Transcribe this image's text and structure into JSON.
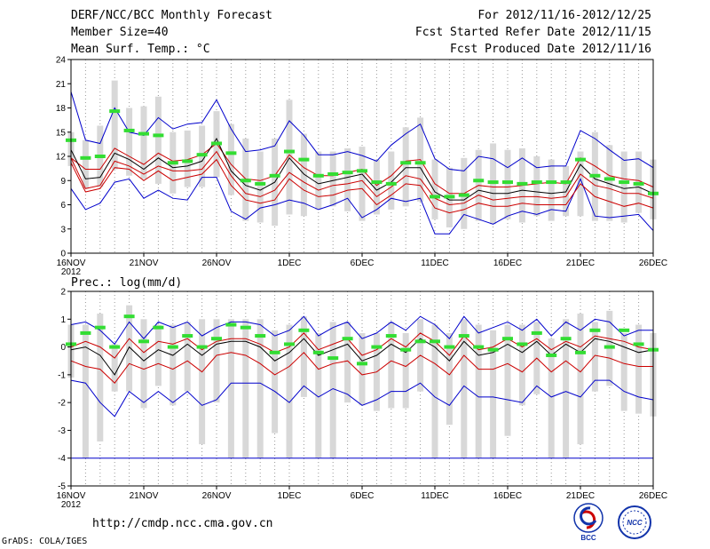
{
  "header": {
    "title": "DERF/NCC/BCC Monthly Forecast",
    "member_size": "Member Size=40",
    "variable": "Mean Surf. Temp.: °C",
    "period": "For 2012/11/16-2012/12/25",
    "started": "Fcst Started Refer Date 2012/11/15",
    "produced": "Fcst Produced Date 2012/11/16"
  },
  "footer": {
    "url": "http://cmdp.ncc.cma.gov.cn",
    "credit": "GrADS: COLA/IGES",
    "logo_left_text": "BCC",
    "logo_right_text": "NCC"
  },
  "colors": {
    "envelope": "#0000cc",
    "spread": "#cc0000",
    "mean": "#000000",
    "observed": "#33dd33",
    "box": "#d8d8d8",
    "axis": "#000000",
    "grid": "#999999"
  },
  "chart_data": [
    {
      "type": "line",
      "title": "Mean Surf. Temp.: °C",
      "ylim": [
        0,
        24
      ],
      "yticks": [
        0,
        3,
        6,
        9,
        12,
        15,
        18,
        21,
        24
      ],
      "xlim": [
        0,
        40
      ],
      "xticks": [
        0,
        5,
        10,
        15,
        20,
        25,
        30,
        35,
        40
      ],
      "xtick_labels": [
        "16NOV",
        "21NOV",
        "26NOV",
        "1DEC",
        "6DEC",
        "11DEC",
        "16DEC",
        "21DEC",
        "26DEC"
      ],
      "xtick_sub": "2012",
      "grid": true,
      "series": [
        {
          "name": "max",
          "values": [
            20.0,
            14.0,
            13.6,
            18.0,
            15.0,
            14.6,
            16.8,
            15.4,
            16.0,
            16.2,
            19.0,
            15.4,
            12.6,
            12.8,
            13.3,
            16.4,
            14.6,
            12.2,
            12.2,
            12.6,
            12.1,
            11.4,
            13.4,
            14.8,
            16.0,
            11.7,
            10.4,
            10.2,
            12.0,
            11.7,
            10.6,
            11.8,
            10.6,
            10.8,
            10.8,
            15.2,
            14.2,
            12.8,
            11.5,
            11.7,
            10.6
          ]
        },
        {
          "name": "upper",
          "values": [
            11.8,
            10.4,
            10.4,
            13.0,
            12.0,
            11.0,
            12.4,
            11.4,
            11.6,
            12.2,
            13.6,
            11.0,
            9.2,
            9.0,
            9.6,
            12.2,
            10.6,
            9.6,
            9.6,
            10.0,
            10.4,
            8.4,
            9.6,
            11.4,
            11.6,
            8.6,
            7.4,
            7.4,
            8.4,
            8.2,
            8.2,
            8.4,
            8.6,
            8.8,
            8.6,
            11.8,
            10.8,
            9.6,
            9.2,
            9.0,
            8.2
          ]
        },
        {
          "name": "mean",
          "values": [
            12.8,
            9.2,
            9.4,
            12.4,
            11.6,
            10.4,
            11.8,
            10.6,
            10.8,
            11.4,
            14.2,
            10.2,
            8.4,
            7.8,
            8.8,
            11.8,
            9.8,
            8.6,
            9.0,
            9.4,
            9.8,
            7.8,
            8.8,
            10.6,
            10.6,
            7.6,
            6.6,
            6.6,
            7.8,
            7.4,
            7.4,
            7.8,
            7.6,
            7.4,
            7.6,
            11.0,
            9.2,
            8.6,
            8.0,
            8.2,
            7.4
          ]
        },
        {
          "name": "lower",
          "values": [
            11.8,
            8.0,
            8.4,
            11.4,
            10.8,
            9.8,
            10.8,
            10.2,
            10.2,
            10.4,
            12.6,
            9.6,
            7.4,
            7.0,
            7.8,
            10.0,
            8.8,
            7.8,
            8.4,
            8.6,
            9.0,
            7.0,
            8.2,
            9.6,
            9.2,
            6.8,
            6.0,
            6.2,
            7.2,
            6.6,
            6.8,
            7.0,
            7.0,
            6.8,
            7.0,
            9.8,
            8.4,
            8.0,
            7.4,
            7.4,
            6.8
          ]
        },
        {
          "name": "low2",
          "values": [
            11.2,
            7.6,
            8.0,
            10.6,
            10.4,
            9.0,
            10.2,
            9.0,
            9.4,
            9.8,
            11.6,
            8.4,
            6.6,
            6.2,
            6.6,
            9.2,
            7.8,
            7.0,
            7.2,
            7.8,
            8.0,
            6.0,
            7.2,
            8.6,
            8.4,
            5.6,
            5.0,
            5.4,
            6.2,
            5.8,
            5.8,
            6.2,
            6.0,
            6.0,
            6.0,
            8.6,
            7.0,
            6.4,
            5.8,
            6.2,
            5.6
          ]
        },
        {
          "name": "min",
          "values": [
            8.0,
            5.4,
            6.2,
            8.8,
            9.2,
            6.8,
            7.8,
            6.8,
            6.6,
            9.4,
            9.4,
            5.2,
            4.2,
            5.6,
            6.0,
            6.6,
            6.2,
            5.4,
            6.0,
            6.8,
            4.4,
            5.4,
            6.8,
            6.4,
            6.8,
            2.4,
            2.4,
            4.8,
            4.2,
            3.6,
            4.6,
            5.2,
            4.8,
            5.4,
            5.2,
            9.2,
            4.6,
            4.4,
            4.6,
            4.8,
            2.8
          ]
        },
        {
          "name": "observed",
          "values": [
            14.0,
            11.8,
            12.0,
            17.6,
            15.2,
            14.8,
            14.6,
            11.2,
            11.4,
            12.2,
            13.6,
            12.4,
            9.0,
            8.6,
            9.6,
            12.6,
            11.6,
            9.6,
            9.8,
            10.0,
            10.2,
            8.8,
            8.6,
            11.2,
            11.2,
            7.0,
            7.0,
            7.2,
            9.0,
            8.8,
            8.8,
            8.6,
            8.8,
            8.8,
            8.8,
            11.6,
            9.6,
            9.2,
            8.8,
            8.6,
            7.4
          ]
        },
        {
          "name": "box_top",
          "values": [
            15.0,
            14.0,
            15.8,
            21.4,
            18.0,
            18.2,
            19.4,
            15.0,
            15.2,
            15.8,
            17.6,
            16.0,
            14.2,
            12.6,
            14.2,
            19.0,
            14.8,
            12.6,
            12.6,
            13.0,
            13.2,
            11.6,
            12.6,
            15.6,
            16.8,
            11.6,
            10.6,
            11.8,
            12.8,
            13.6,
            12.8,
            13.0,
            12.0,
            11.6,
            10.8,
            12.6,
            15.0,
            13.4,
            12.6,
            12.6,
            11.6
          ]
        },
        {
          "name": "box_bottom",
          "values": [
            10.8,
            8.0,
            8.2,
            10.4,
            9.6,
            9.2,
            8.6,
            7.4,
            8.2,
            8.2,
            9.4,
            7.2,
            4.0,
            3.8,
            3.4,
            4.8,
            4.6,
            5.4,
            5.8,
            5.2,
            4.0,
            4.8,
            5.4,
            5.8,
            6.4,
            4.2,
            3.2,
            3.0,
            4.0,
            3.6,
            4.2,
            3.8,
            4.6,
            4.0,
            4.6,
            4.6,
            4.0,
            4.0,
            3.8,
            5.0,
            4.2
          ]
        }
      ]
    },
    {
      "type": "line",
      "title": "Prec.: log(mm/d)",
      "ylim": [
        -5,
        2
      ],
      "yticks": [
        -5,
        -4,
        -3,
        -2,
        -1,
        0,
        1,
        2
      ],
      "xlim": [
        0,
        40
      ],
      "xticks": [
        0,
        5,
        10,
        15,
        20,
        25,
        30,
        35,
        40
      ],
      "xtick_labels": [
        "16NOV",
        "21NOV",
        "26NOV",
        "1DEC",
        "6DEC",
        "11DEC",
        "16DEC",
        "21DEC",
        "26DEC"
      ],
      "xtick_sub": "2012",
      "grid": true,
      "floor_line": -4,
      "series": [
        {
          "name": "max",
          "values": [
            0.8,
            0.9,
            0.6,
            0.1,
            0.9,
            0.3,
            0.9,
            0.7,
            0.9,
            0.4,
            0.7,
            0.9,
            0.9,
            0.8,
            0.4,
            0.6,
            1.1,
            0.4,
            0.7,
            0.9,
            0.3,
            0.5,
            0.9,
            0.6,
            1.1,
            0.8,
            0.3,
            1.1,
            0.5,
            0.7,
            0.9,
            0.6,
            1.0,
            0.4,
            0.9,
            0.6,
            1.0,
            0.9,
            0.4,
            0.6,
            0.6
          ]
        },
        {
          "name": "upper",
          "values": [
            0.0,
            0.2,
            0.0,
            -0.4,
            0.3,
            -0.2,
            0.2,
            0.1,
            0.3,
            -0.1,
            0.2,
            0.3,
            0.3,
            0.1,
            -0.2,
            0.0,
            0.5,
            -0.1,
            0.1,
            0.3,
            -0.3,
            -0.1,
            0.3,
            0.0,
            0.5,
            0.2,
            -0.3,
            0.4,
            -0.1,
            0.0,
            0.3,
            0.0,
            0.3,
            -0.1,
            0.2,
            0.0,
            0.4,
            0.3,
            0.2,
            0.0,
            -0.1
          ]
        },
        {
          "name": "mean",
          "values": [
            -0.1,
            0.0,
            -0.3,
            -1.0,
            0.0,
            -0.5,
            -0.1,
            -0.3,
            0.1,
            -0.3,
            0.1,
            0.2,
            0.2,
            0.0,
            -0.5,
            -0.2,
            0.3,
            -0.3,
            -0.1,
            0.1,
            -0.5,
            -0.3,
            0.1,
            -0.2,
            0.3,
            0.0,
            -0.5,
            0.2,
            -0.3,
            -0.2,
            0.1,
            -0.2,
            0.2,
            -0.3,
            0.1,
            -0.2,
            0.3,
            0.2,
            0.0,
            -0.2,
            -0.1
          ]
        },
        {
          "name": "lower",
          "values": [
            -0.5,
            -0.7,
            -0.8,
            -1.3,
            -0.6,
            -0.8,
            -0.6,
            -0.8,
            -0.5,
            -0.9,
            -0.3,
            -0.2,
            -0.3,
            -0.6,
            -1.0,
            -0.7,
            -0.2,
            -0.8,
            -0.6,
            -0.5,
            -1.0,
            -0.9,
            -0.5,
            -0.7,
            -0.3,
            -0.6,
            -1.0,
            -0.3,
            -0.8,
            -0.8,
            -0.6,
            -0.9,
            -0.4,
            -0.9,
            -0.5,
            -0.9,
            -0.3,
            -0.4,
            -0.6,
            -0.7,
            -0.7
          ]
        },
        {
          "name": "min",
          "values": [
            -1.2,
            -1.3,
            -2.0,
            -2.5,
            -1.6,
            -2.0,
            -1.6,
            -2.0,
            -1.6,
            -2.1,
            -1.9,
            -1.3,
            -1.3,
            -1.3,
            -1.6,
            -2.0,
            -1.4,
            -1.8,
            -1.5,
            -1.7,
            -2.1,
            -1.9,
            -1.6,
            -1.6,
            -1.3,
            -1.8,
            -2.1,
            -1.4,
            -1.8,
            -1.8,
            -1.9,
            -2.0,
            -1.4,
            -1.8,
            -1.6,
            -1.8,
            -1.2,
            -1.2,
            -1.6,
            -1.8,
            -1.9
          ]
        },
        {
          "name": "observed",
          "values": [
            0.1,
            0.5,
            0.7,
            0.0,
            1.1,
            0.2,
            0.7,
            0.0,
            0.4,
            0.0,
            0.3,
            0.8,
            0.7,
            0.4,
            -0.2,
            0.1,
            0.6,
            -0.2,
            -0.4,
            0.3,
            -0.6,
            0.0,
            0.4,
            -0.1,
            0.2,
            0.2,
            0.0,
            0.4,
            0.0,
            -0.1,
            0.3,
            0.1,
            0.5,
            -0.3,
            0.3,
            -0.2,
            0.6,
            0.0,
            0.6,
            0.1,
            -0.1
          ]
        },
        {
          "name": "box_top",
          "values": [
            0.8,
            0.8,
            1.2,
            0.1,
            1.5,
            1.0,
            0.8,
            0.8,
            0.9,
            1.0,
            1.0,
            1.0,
            1.0,
            1.0,
            0.6,
            0.8,
            1.1,
            0.5,
            0.9,
            0.9,
            0.5,
            0.5,
            0.9,
            0.5,
            1.0,
            0.8,
            0.5,
            1.0,
            0.8,
            0.6,
            0.8,
            0.8,
            0.9,
            0.3,
            1.0,
            1.2,
            0.9,
            1.3,
            0.5,
            0.8,
            0.5
          ]
        },
        {
          "name": "box_bottom",
          "values": [
            -1.1,
            -4.0,
            -3.4,
            -1.6,
            -1.6,
            -2.2,
            -1.4,
            -2.1,
            -1.6,
            -3.5,
            -2.0,
            -4.0,
            -4.0,
            -4.0,
            -3.1,
            -4.0,
            -1.8,
            -4.0,
            -4.0,
            -2.0,
            -2.1,
            -2.3,
            -2.2,
            -2.2,
            -1.6,
            -4.0,
            -2.8,
            -4.0,
            -4.0,
            -4.0,
            -3.2,
            -2.1,
            -1.7,
            -4.0,
            -4.0,
            -3.5,
            -1.6,
            -1.4,
            -2.3,
            -2.4,
            -2.5
          ]
        }
      ]
    }
  ]
}
